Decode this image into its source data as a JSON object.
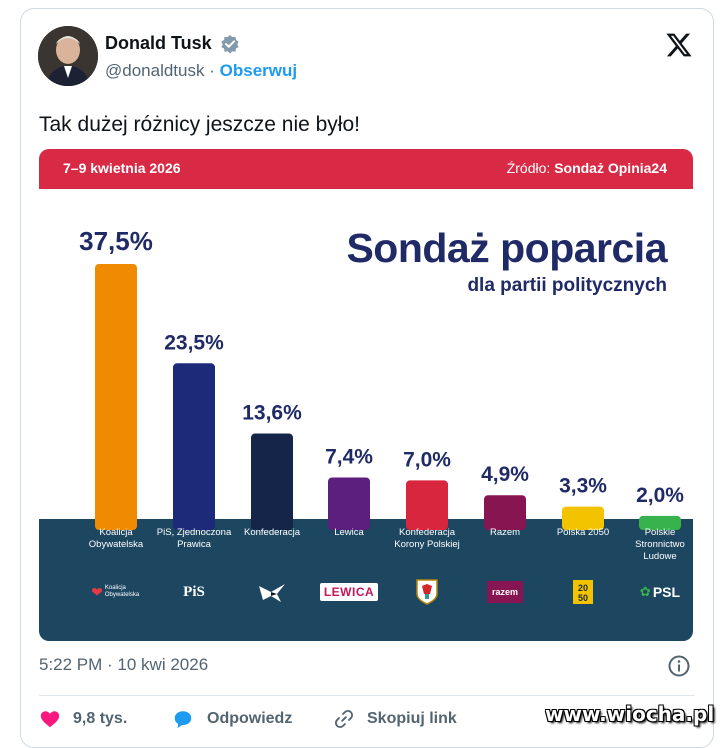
{
  "post": {
    "author_name": "Donald Tusk",
    "handle": "@donaldtusk",
    "separator": "·",
    "follow_label": "Obserwuj",
    "text": "Tak dużej różnicy jeszcze nie było!",
    "timestamp": "5:22 PM · 10 kwi 2026"
  },
  "actions": {
    "likes": "9,8 tys.",
    "reply": "Odpowiedz",
    "copy_link": "Skopiuj link"
  },
  "watermark": "www.wiocha.pl",
  "icons": [
    "verified-badge-icon",
    "x-logo-icon",
    "info-icon",
    "heart-icon",
    "reply-bubble-icon",
    "link-icon"
  ],
  "colors": {
    "follow": "#1d9bf0",
    "like": "#f91880",
    "banner": "#d92a45",
    "headline": "#1f2a66",
    "band": "#1d4661"
  },
  "chart_data": {
    "type": "bar",
    "date": "7–9 kwietnia 2026",
    "source_label": "Źródło:",
    "source_name": "Sondaż Opinia24",
    "title": "Sondaż poparcia",
    "subtitle": "dla partii politycznych",
    "categories": [
      "Koalicja Obywatelska",
      "PiS, Zjednoczona Prawica",
      "Konfederacja",
      "Lewica",
      "Konfederacja Korony Polskiej",
      "Razem",
      "Polska 2050",
      "Polskie Stronnictwo Ludowe"
    ],
    "label_lines": [
      [
        "Koalicja",
        "Obywatelska"
      ],
      [
        "PiS, Zjednoczona",
        "Prawica"
      ],
      [
        "Konfederacja"
      ],
      [
        "Lewica"
      ],
      [
        "Konfederacja",
        "Korony Polskiej"
      ],
      [
        "Razem"
      ],
      [
        "Polska 2050"
      ],
      [
        "Polskie",
        "Stronnictwo",
        "Ludowe"
      ]
    ],
    "values": [
      37.5,
      23.5,
      13.6,
      7.4,
      7.0,
      4.9,
      3.3,
      2.0
    ],
    "value_labels": [
      "37,5%",
      "23,5%",
      "13,6%",
      "7,4%",
      "7,0%",
      "4,9%",
      "3,3%",
      "2,0%"
    ],
    "bar_colors": [
      "#f08a00",
      "#1d2a7a",
      "#15254a",
      "#5c1f7e",
      "#d7263d",
      "#861551",
      "#f4c300",
      "#37b24d"
    ],
    "value_label_color": "#1f2a66",
    "ylim": [
      0,
      37.5
    ],
    "grid": false,
    "legend": "none",
    "logos": [
      {
        "text": "Koalicja Obywatelska",
        "type": "ko"
      },
      {
        "text": "PiS",
        "type": "pis"
      },
      {
        "text": "",
        "type": "konf"
      },
      {
        "text": "LEWICA",
        "type": "lewica"
      },
      {
        "text": "",
        "type": "kkp"
      },
      {
        "text": "razem",
        "type": "razem"
      },
      {
        "text": "",
        "type": "pl2050"
      },
      {
        "text": "PSL",
        "type": "psl"
      }
    ]
  }
}
